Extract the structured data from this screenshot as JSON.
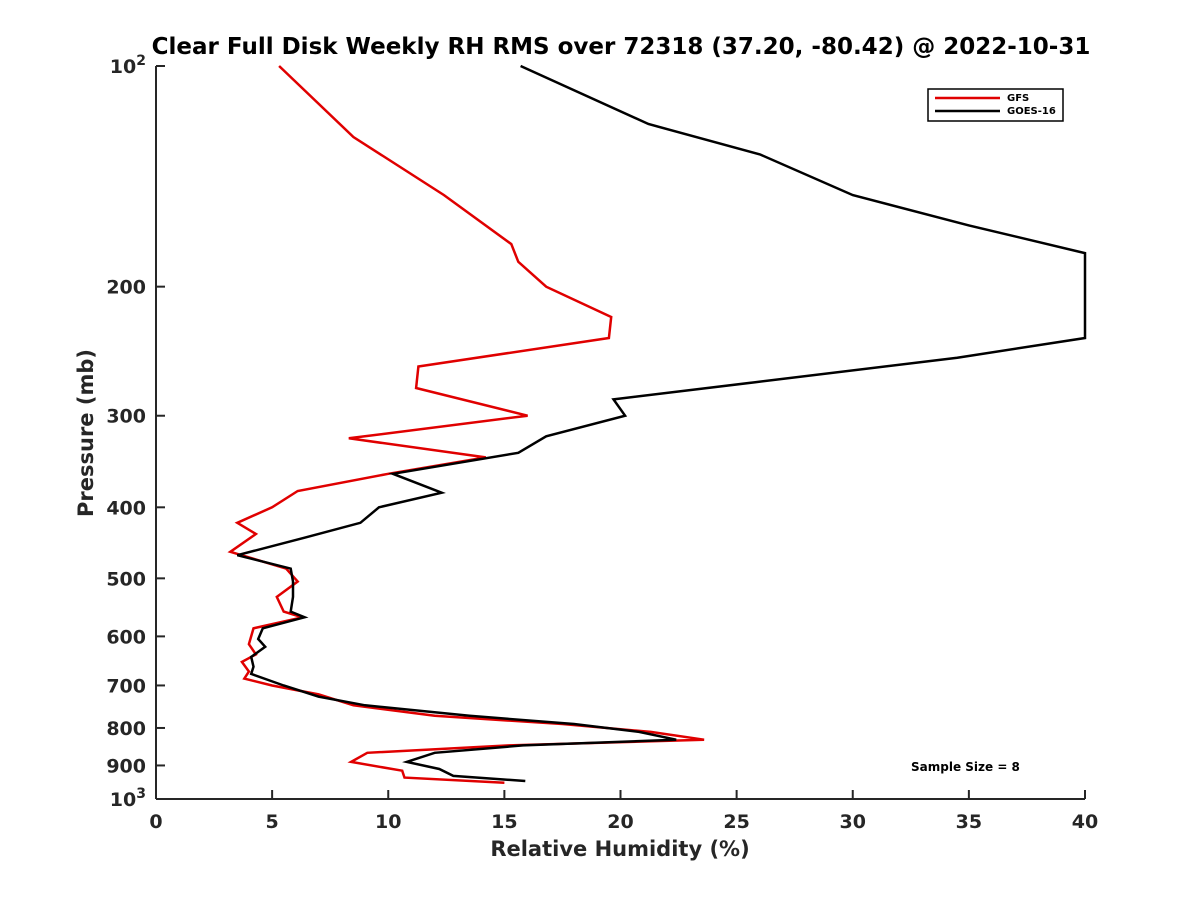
{
  "chart_data": {
    "type": "line",
    "title": "Clear Full Disk Weekly RH RMS over 72318 (37.20, -80.42) @ 2022-10-31",
    "xlabel": "Relative Humidity (%)",
    "ylabel": "Pressure (mb)",
    "xlim": [
      0,
      40
    ],
    "ylim": [
      100,
      1000
    ],
    "y_scale": "log",
    "y_reversed": true,
    "grid": false,
    "legend_position": "top-right",
    "x_ticks": [
      {
        "value": 0,
        "label": "0"
      },
      {
        "value": 5,
        "label": "5"
      },
      {
        "value": 10,
        "label": "10"
      },
      {
        "value": 15,
        "label": "15"
      },
      {
        "value": 20,
        "label": "20"
      },
      {
        "value": 25,
        "label": "25"
      },
      {
        "value": 30,
        "label": "30"
      },
      {
        "value": 35,
        "label": "35"
      },
      {
        "value": 40,
        "label": "40"
      }
    ],
    "y_ticks": [
      {
        "value": 100,
        "label": "10",
        "sup": "2"
      },
      {
        "value": 200,
        "label": "200",
        "sup": ""
      },
      {
        "value": 300,
        "label": "300",
        "sup": ""
      },
      {
        "value": 400,
        "label": "400",
        "sup": ""
      },
      {
        "value": 500,
        "label": "500",
        "sup": ""
      },
      {
        "value": 600,
        "label": "600",
        "sup": ""
      },
      {
        "value": 700,
        "label": "700",
        "sup": ""
      },
      {
        "value": 800,
        "label": "800",
        "sup": ""
      },
      {
        "value": 900,
        "label": "900",
        "sup": ""
      },
      {
        "value": 1000,
        "label": "10",
        "sup": "3"
      }
    ],
    "annotation": "Sample Size = 8",
    "series": [
      {
        "name": "GFS",
        "color": "#e00000",
        "points": [
          [
            5.3,
            100
          ],
          [
            8.5,
            125
          ],
          [
            12.4,
            150
          ],
          [
            15.3,
            175
          ],
          [
            15.6,
            185
          ],
          [
            16.8,
            200
          ],
          [
            19.6,
            220
          ],
          [
            19.5,
            235
          ],
          [
            11.3,
            257
          ],
          [
            11.2,
            275
          ],
          [
            16.0,
            300
          ],
          [
            8.3,
            322
          ],
          [
            14.2,
            342
          ],
          [
            10.0,
            360
          ],
          [
            6.1,
            380
          ],
          [
            5.0,
            400
          ],
          [
            3.5,
            420
          ],
          [
            4.3,
            435
          ],
          [
            3.2,
            460
          ],
          [
            5.6,
            485
          ],
          [
            6.1,
            505
          ],
          [
            5.2,
            530
          ],
          [
            5.5,
            555
          ],
          [
            6.3,
            565
          ],
          [
            4.2,
            585
          ],
          [
            4.0,
            615
          ],
          [
            4.3,
            635
          ],
          [
            3.7,
            650
          ],
          [
            4.0,
            670
          ],
          [
            3.8,
            685
          ],
          [
            5.0,
            700
          ],
          [
            7.0,
            720
          ],
          [
            8.5,
            745
          ],
          [
            12.0,
            770
          ],
          [
            17.5,
            790
          ],
          [
            21.3,
            810
          ],
          [
            23.6,
            830
          ],
          [
            15.2,
            845
          ],
          [
            9.1,
            865
          ],
          [
            8.4,
            890
          ],
          [
            10.6,
            915
          ],
          [
            10.7,
            935
          ],
          [
            15.0,
            950
          ]
        ]
      },
      {
        "name": "GOES-16",
        "color": "#000000",
        "points": [
          [
            15.7,
            100
          ],
          [
            21.2,
            120
          ],
          [
            26.0,
            132
          ],
          [
            30.0,
            150
          ],
          [
            35.0,
            165
          ],
          [
            40.0,
            180
          ],
          [
            40.0,
            235
          ],
          [
            34.5,
            250
          ],
          [
            25.8,
            270
          ],
          [
            19.7,
            285
          ],
          [
            20.2,
            300
          ],
          [
            16.8,
            320
          ],
          [
            15.6,
            337
          ],
          [
            10.2,
            360
          ],
          [
            12.3,
            382
          ],
          [
            9.6,
            400
          ],
          [
            8.8,
            420
          ],
          [
            6.4,
            440
          ],
          [
            3.5,
            465
          ],
          [
            5.8,
            485
          ],
          [
            5.9,
            505
          ],
          [
            5.9,
            530
          ],
          [
            5.8,
            555
          ],
          [
            6.4,
            565
          ],
          [
            4.6,
            585
          ],
          [
            4.4,
            605
          ],
          [
            4.7,
            620
          ],
          [
            4.1,
            640
          ],
          [
            4.2,
            660
          ],
          [
            4.1,
            675
          ],
          [
            5.5,
            700
          ],
          [
            7.0,
            725
          ],
          [
            9.0,
            745
          ],
          [
            13.5,
            770
          ],
          [
            18.0,
            790
          ],
          [
            20.8,
            810
          ],
          [
            22.4,
            830
          ],
          [
            15.8,
            845
          ],
          [
            12.0,
            865
          ],
          [
            10.8,
            890
          ],
          [
            12.2,
            910
          ],
          [
            12.8,
            930
          ],
          [
            15.9,
            945
          ]
        ]
      }
    ]
  }
}
